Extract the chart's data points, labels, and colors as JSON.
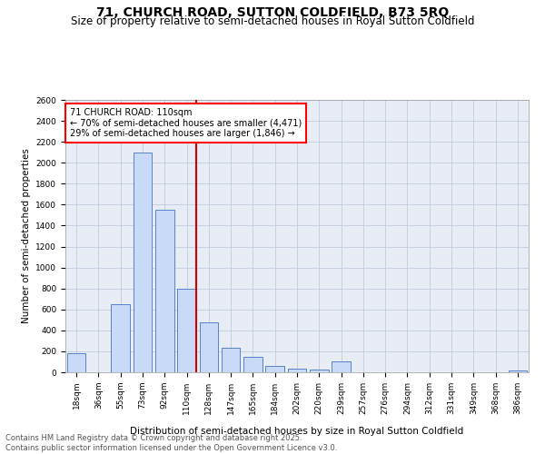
{
  "title": "71, CHURCH ROAD, SUTTON COLDFIELD, B73 5RQ",
  "subtitle": "Size of property relative to semi-detached houses in Royal Sutton Coldfield",
  "xlabel": "Distribution of semi-detached houses by size in Royal Sutton Coldfield",
  "ylabel": "Number of semi-detached properties",
  "annotation_line1": "71 CHURCH ROAD: 110sqm",
  "annotation_line2": "← 70% of semi-detached houses are smaller (4,471)",
  "annotation_line3": "29% of semi-detached houses are larger (1,846) →",
  "footer_line1": "Contains HM Land Registry data © Crown copyright and database right 2025.",
  "footer_line2": "Contains public sector information licensed under the Open Government Licence v3.0.",
  "bin_labels": [
    "18sqm",
    "36sqm",
    "55sqm",
    "73sqm",
    "92sqm",
    "110sqm",
    "128sqm",
    "147sqm",
    "165sqm",
    "184sqm",
    "202sqm",
    "220sqm",
    "239sqm",
    "257sqm",
    "276sqm",
    "294sqm",
    "312sqm",
    "331sqm",
    "349sqm",
    "368sqm",
    "386sqm"
  ],
  "bar_values": [
    180,
    0,
    650,
    2100,
    1550,
    800,
    480,
    230,
    150,
    60,
    35,
    25,
    100,
    0,
    0,
    0,
    0,
    0,
    0,
    0,
    20
  ],
  "bar_color": "#c9daf8",
  "bar_edge_color": "#4472c4",
  "vline_color": "#cc0000",
  "vline_index": 5,
  "ylim": [
    0,
    2600
  ],
  "yticks": [
    0,
    200,
    400,
    600,
    800,
    1000,
    1200,
    1400,
    1600,
    1800,
    2000,
    2200,
    2400,
    2600
  ],
  "background_color": "#ffffff",
  "plot_bg_color": "#e8edf5",
  "grid_color": "#b8c4d8",
  "title_fontsize": 10,
  "subtitle_fontsize": 8.5,
  "axis_label_fontsize": 7.5,
  "tick_fontsize": 6.5,
  "annotation_fontsize": 7,
  "footer_fontsize": 6
}
